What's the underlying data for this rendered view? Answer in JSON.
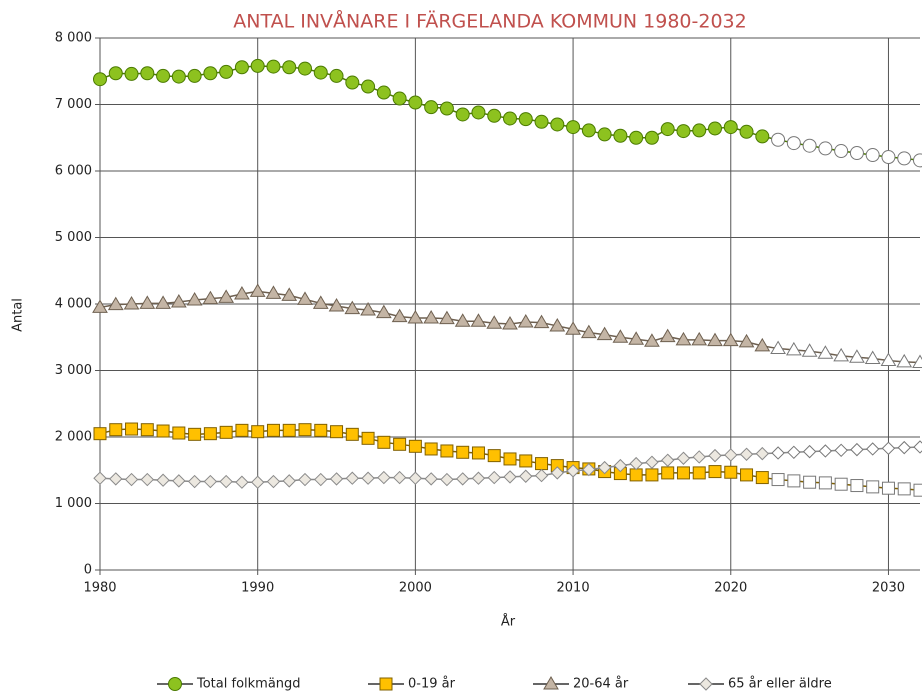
{
  "chart_data": {
    "type": "line",
    "title": "ANTAL INVÅNARE I FÄRGELANDA KOMMUN 1980-2032",
    "xlabel": "År",
    "ylabel": "Antal",
    "x": [
      1980,
      1981,
      1982,
      1983,
      1984,
      1985,
      1986,
      1987,
      1988,
      1989,
      1990,
      1991,
      1992,
      1993,
      1994,
      1995,
      1996,
      1997,
      1998,
      1999,
      2000,
      2001,
      2002,
      2003,
      2004,
      2005,
      2006,
      2007,
      2008,
      2009,
      2010,
      2011,
      2012,
      2013,
      2014,
      2015,
      2016,
      2017,
      2018,
      2019,
      2020,
      2021,
      2022,
      2023,
      2024,
      2025,
      2026,
      2027,
      2028,
      2029,
      2030,
      2031,
      2032
    ],
    "forecast_from": 2023,
    "series": [
      {
        "name": "Total folkmängd",
        "marker": "circle",
        "color": "#8dc21f",
        "stroke": "#4a7a00",
        "forecast_color": "#ffffff",
        "values": [
          7380,
          7470,
          7460,
          7470,
          7430,
          7420,
          7430,
          7470,
          7490,
          7560,
          7580,
          7570,
          7560,
          7540,
          7480,
          7430,
          7330,
          7270,
          7180,
          7090,
          7030,
          6960,
          6940,
          6850,
          6880,
          6830,
          6790,
          6780,
          6740,
          6700,
          6660,
          6610,
          6550,
          6530,
          6500,
          6500,
          6630,
          6600,
          6610,
          6640,
          6660,
          6590,
          6520,
          6470,
          6420,
          6380,
          6340,
          6300,
          6270,
          6240,
          6210,
          6190,
          6160
        ]
      },
      {
        "name": "0-19 år",
        "marker": "square",
        "color": "#ffc000",
        "stroke": "#806000",
        "forecast_color": "#ffffff",
        "values": [
          2050,
          2110,
          2120,
          2110,
          2090,
          2060,
          2040,
          2050,
          2070,
          2100,
          2080,
          2100,
          2100,
          2110,
          2100,
          2080,
          2040,
          1980,
          1920,
          1890,
          1860,
          1820,
          1790,
          1770,
          1760,
          1720,
          1670,
          1640,
          1600,
          1570,
          1540,
          1520,
          1480,
          1450,
          1430,
          1430,
          1460,
          1460,
          1460,
          1480,
          1470,
          1430,
          1390,
          1360,
          1340,
          1320,
          1310,
          1290,
          1270,
          1250,
          1230,
          1220,
          1200
        ]
      },
      {
        "name": "20-64 år",
        "marker": "triangle",
        "color": "#c4b5a5",
        "stroke": "#6e6050",
        "forecast_color": "#ffffff",
        "values": [
          3950,
          3990,
          4000,
          4010,
          4010,
          4030,
          4060,
          4080,
          4100,
          4150,
          4190,
          4160,
          4130,
          4070,
          4010,
          3970,
          3930,
          3910,
          3870,
          3810,
          3790,
          3790,
          3780,
          3740,
          3740,
          3710,
          3700,
          3730,
          3720,
          3670,
          3620,
          3570,
          3540,
          3500,
          3470,
          3440,
          3510,
          3460,
          3460,
          3450,
          3450,
          3430,
          3370,
          3330,
          3310,
          3290,
          3260,
          3220,
          3200,
          3180,
          3150,
          3130,
          3120
        ]
      },
      {
        "name": "65 år eller äldre",
        "marker": "diamond",
        "color": "#ece8e0",
        "stroke": "#8a8a8a",
        "forecast_color": "#ffffff",
        "values": [
          1380,
          1370,
          1360,
          1360,
          1350,
          1340,
          1330,
          1330,
          1330,
          1320,
          1320,
          1330,
          1340,
          1360,
          1360,
          1370,
          1380,
          1380,
          1390,
          1390,
          1380,
          1370,
          1360,
          1370,
          1380,
          1390,
          1400,
          1410,
          1420,
          1460,
          1490,
          1510,
          1540,
          1570,
          1600,
          1620,
          1650,
          1680,
          1700,
          1720,
          1730,
          1740,
          1750,
          1760,
          1770,
          1780,
          1790,
          1800,
          1810,
          1820,
          1830,
          1840,
          1850
        ]
      }
    ],
    "xlim": [
      1980,
      2032
    ],
    "xticks": [
      1980,
      1990,
      2000,
      2010,
      2020,
      2030
    ],
    "ylim": [
      0,
      8000
    ],
    "yticks": [
      0,
      {
        "value": 1000,
        "label": "1 000"
      },
      {
        "value": 2000,
        "label": "2 000"
      },
      {
        "value": 3000,
        "label": "3 000"
      },
      {
        "value": 4000,
        "label": "4 000"
      },
      {
        "value": 5000,
        "label": "5 000"
      },
      {
        "value": 6000,
        "label": "6 000"
      },
      {
        "value": 7000,
        "label": "7 000"
      },
      {
        "value": 8000,
        "label": "8 000"
      }
    ],
    "grid": true,
    "legend": "bottom"
  }
}
